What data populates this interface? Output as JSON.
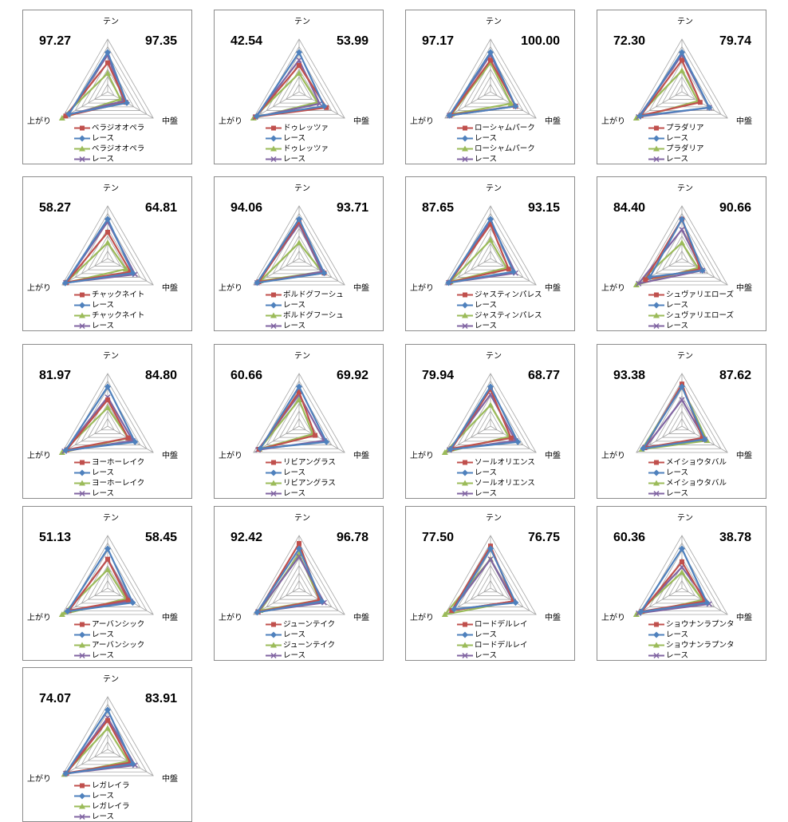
{
  "axes": [
    "テン",
    "中盤",
    "上がり"
  ],
  "colors": {
    "horse_line": "#c0504d",
    "race_line": "#4f81bd",
    "horse_avg": "#9bbb59",
    "race_avg": "#8064a2",
    "grid": "#a6a6a6"
  },
  "legend_race_label": "レース",
  "chart_data": [
    {
      "type": "radar",
      "horse": "ベラジオオペラ",
      "left_value": "97.27",
      "right_value": "97.35",
      "series": [
        {
          "name": "ベラジオオペラ",
          "values": [
            0.55,
            0.4,
            0.92
          ]
        },
        {
          "name": "レース",
          "values": [
            0.75,
            0.42,
            0.85
          ]
        },
        {
          "name": "ベラジオオペラ",
          "values": [
            0.35,
            0.28,
            1.0
          ]
        },
        {
          "name": "レース",
          "values": [
            0.7,
            0.35,
            0.87
          ]
        }
      ]
    },
    {
      "type": "radar",
      "horse": "ドゥレッツァ",
      "left_value": "42.54",
      "right_value": "53.99",
      "series": [
        {
          "name": "ドゥレッツァ",
          "values": [
            0.5,
            0.6,
            0.95
          ]
        },
        {
          "name": "レース",
          "values": [
            0.75,
            0.55,
            0.93
          ]
        },
        {
          "name": "ドゥレッツァ",
          "values": [
            0.35,
            0.4,
            1.0
          ]
        },
        {
          "name": "レース",
          "values": [
            0.6,
            0.45,
            0.96
          ]
        }
      ]
    },
    {
      "type": "radar",
      "horse": "ローシャムパーク",
      "left_value": "97.17",
      "right_value": "100.00",
      "series": [
        {
          "name": "ローシャムパーク",
          "values": [
            0.6,
            0.55,
            0.87
          ]
        },
        {
          "name": "レース",
          "values": [
            0.75,
            0.55,
            0.9
          ]
        },
        {
          "name": "ローシャムパーク",
          "values": [
            0.55,
            0.45,
            0.85
          ]
        },
        {
          "name": "レース",
          "values": [
            0.7,
            0.55,
            0.9
          ]
        }
      ]
    },
    {
      "type": "radar",
      "horse": "プラダリア",
      "left_value": "72.30",
      "right_value": "79.74",
      "series": [
        {
          "name": "プラダリア",
          "values": [
            0.6,
            0.4,
            0.9
          ]
        },
        {
          "name": "レース",
          "values": [
            0.75,
            0.6,
            0.92
          ]
        },
        {
          "name": "プラダリア",
          "values": [
            0.4,
            0.35,
            1.0
          ]
        },
        {
          "name": "レース",
          "values": [
            0.7,
            0.6,
            0.95
          ]
        }
      ]
    },
    {
      "type": "radar",
      "horse": "チャックネイト",
      "left_value": "58.27",
      "right_value": "64.81",
      "series": [
        {
          "name": "チャックネイト",
          "values": [
            0.5,
            0.5,
            0.9
          ]
        },
        {
          "name": "レース",
          "values": [
            0.75,
            0.55,
            0.93
          ]
        },
        {
          "name": "チャックネイト",
          "values": [
            0.3,
            0.4,
            0.92
          ]
        },
        {
          "name": "レース",
          "values": [
            0.7,
            0.6,
            0.92
          ]
        }
      ]
    },
    {
      "type": "radar",
      "horse": "ボルドグフーシュ",
      "left_value": "94.06",
      "right_value": "93.71",
      "series": [
        {
          "name": "ボルドグフーシュ",
          "values": [
            0.7,
            0.55,
            0.88
          ]
        },
        {
          "name": "レース",
          "values": [
            0.75,
            0.55,
            0.92
          ]
        },
        {
          "name": "ボルドグフーシュ",
          "values": [
            0.3,
            0.5,
            0.85
          ]
        },
        {
          "name": "レース",
          "values": [
            0.65,
            0.5,
            0.92
          ]
        }
      ]
    },
    {
      "type": "radar",
      "horse": "ジャスティンパレス",
      "left_value": "87.65",
      "right_value": "93.15",
      "series": [
        {
          "name": "ジャスティンパレス",
          "values": [
            0.65,
            0.4,
            0.9
          ]
        },
        {
          "name": "レース",
          "values": [
            0.75,
            0.5,
            0.92
          ]
        },
        {
          "name": "ジャスティンパレス",
          "values": [
            0.35,
            0.35,
            0.88
          ]
        },
        {
          "name": "レース",
          "values": [
            0.7,
            0.55,
            0.92
          ]
        }
      ]
    },
    {
      "type": "radar",
      "horse": "シュヴァリエローズ",
      "left_value": "84.40",
      "right_value": "90.66",
      "series": [
        {
          "name": "シュヴァリエローズ",
          "values": [
            0.75,
            0.4,
            0.8
          ]
        },
        {
          "name": "レース",
          "values": [
            0.75,
            0.45,
            0.7
          ]
        },
        {
          "name": "シュヴァリエローズ",
          "values": [
            0.3,
            0.35,
            1.0
          ]
        },
        {
          "name": "レース",
          "values": [
            0.55,
            0.45,
            0.95
          ]
        }
      ]
    },
    {
      "type": "radar",
      "horse": "ヨーホーレイク",
      "left_value": "81.97",
      "right_value": "84.80",
      "series": [
        {
          "name": "ヨーホーレイク",
          "values": [
            0.5,
            0.45,
            0.9
          ]
        },
        {
          "name": "レース",
          "values": [
            0.75,
            0.6,
            0.92
          ]
        },
        {
          "name": "ヨーホーレイク",
          "values": [
            0.35,
            0.45,
            1.0
          ]
        },
        {
          "name": "レース",
          "values": [
            0.55,
            0.55,
            0.95
          ]
        }
      ]
    },
    {
      "type": "radar",
      "horse": "リビアングラス",
      "left_value": "60.66",
      "right_value": "69.92",
      "series": [
        {
          "name": "リビアングラス",
          "values": [
            0.65,
            0.35,
            0.88
          ]
        },
        {
          "name": "レース",
          "values": [
            0.75,
            0.6,
            0.85
          ]
        },
        {
          "name": "リビアングラス",
          "values": [
            0.5,
            0.3,
            0.87
          ]
        },
        {
          "name": "レース",
          "values": [
            0.6,
            0.55,
            0.9
          ]
        }
      ]
    },
    {
      "type": "radar",
      "horse": "ソールオリエンス",
      "left_value": "79.94",
      "right_value": "68.77",
      "series": [
        {
          "name": "ソールオリエンス",
          "values": [
            0.7,
            0.45,
            0.85
          ]
        },
        {
          "name": "レース",
          "values": [
            0.75,
            0.6,
            0.88
          ]
        },
        {
          "name": "ソールオリエンス",
          "values": [
            0.4,
            0.4,
            1.0
          ]
        },
        {
          "name": "レース",
          "values": [
            0.6,
            0.55,
            0.9
          ]
        }
      ]
    },
    {
      "type": "radar",
      "horse": "メイショウタバル",
      "left_value": "93.38",
      "right_value": "87.62",
      "series": [
        {
          "name": "メイショウタバル",
          "values": [
            0.8,
            0.45,
            0.82
          ]
        },
        {
          "name": "レース",
          "values": [
            0.75,
            0.5,
            0.85
          ]
        },
        {
          "name": "メイショウタバル",
          "values": [
            0.75,
            0.55,
            0.88
          ]
        },
        {
          "name": "レース",
          "values": [
            0.5,
            0.5,
            0.8
          ]
        }
      ]
    },
    {
      "type": "radar",
      "horse": "アーバンシック",
      "left_value": "51.13",
      "right_value": "58.45",
      "series": [
        {
          "name": "アーバンシック",
          "values": [
            0.55,
            0.45,
            0.85
          ]
        },
        {
          "name": "レース",
          "values": [
            0.75,
            0.55,
            0.88
          ]
        },
        {
          "name": "アーバンシック",
          "values": [
            0.35,
            0.4,
            1.0
          ]
        },
        {
          "name": "レース",
          "values": [
            0.55,
            0.5,
            0.85
          ]
        }
      ]
    },
    {
      "type": "radar",
      "horse": "ジューンテイク",
      "left_value": "92.42",
      "right_value": "96.78",
      "series": [
        {
          "name": "ジューンテイク",
          "values": [
            0.85,
            0.45,
            0.9
          ]
        },
        {
          "name": "レース",
          "values": [
            0.75,
            0.5,
            0.92
          ]
        },
        {
          "name": "ジューンテイク",
          "values": [
            0.65,
            0.45,
            0.85
          ]
        },
        {
          "name": "レース",
          "values": [
            0.6,
            0.55,
            0.9
          ]
        }
      ]
    },
    {
      "type": "radar",
      "horse": "ロードデルレイ",
      "left_value": "77.50",
      "right_value": "76.75",
      "series": [
        {
          "name": "ロードデルレイ",
          "values": [
            0.8,
            0.5,
            0.85
          ]
        },
        {
          "name": "レース",
          "values": [
            0.75,
            0.55,
            0.8
          ]
        },
        {
          "name": "ロードデルレイ",
          "values": [
            0.55,
            0.5,
            1.0
          ]
        },
        {
          "name": "レース",
          "values": [
            0.55,
            0.5,
            0.85
          ]
        }
      ]
    },
    {
      "type": "radar",
      "horse": "ショウナンラプンタ",
      "left_value": "60.36",
      "right_value": "38.78",
      "series": [
        {
          "name": "ショウナンラプンタ",
          "values": [
            0.5,
            0.5,
            0.88
          ]
        },
        {
          "name": "レース",
          "values": [
            0.75,
            0.55,
            0.9
          ]
        },
        {
          "name": "ショウナンラプンタ",
          "values": [
            0.3,
            0.45,
            1.0
          ]
        },
        {
          "name": "レース",
          "values": [
            0.4,
            0.6,
            0.95
          ]
        }
      ]
    },
    {
      "type": "radar",
      "horse": "レガレイラ",
      "left_value": "74.07",
      "right_value": "83.91",
      "series": [
        {
          "name": "レガレイラ",
          "values": [
            0.55,
            0.5,
            0.9
          ]
        },
        {
          "name": "レース",
          "values": [
            0.75,
            0.55,
            0.92
          ]
        },
        {
          "name": "レガレイラ",
          "values": [
            0.4,
            0.45,
            0.95
          ]
        },
        {
          "name": "レース",
          "values": [
            0.6,
            0.6,
            0.92
          ]
        }
      ]
    }
  ]
}
